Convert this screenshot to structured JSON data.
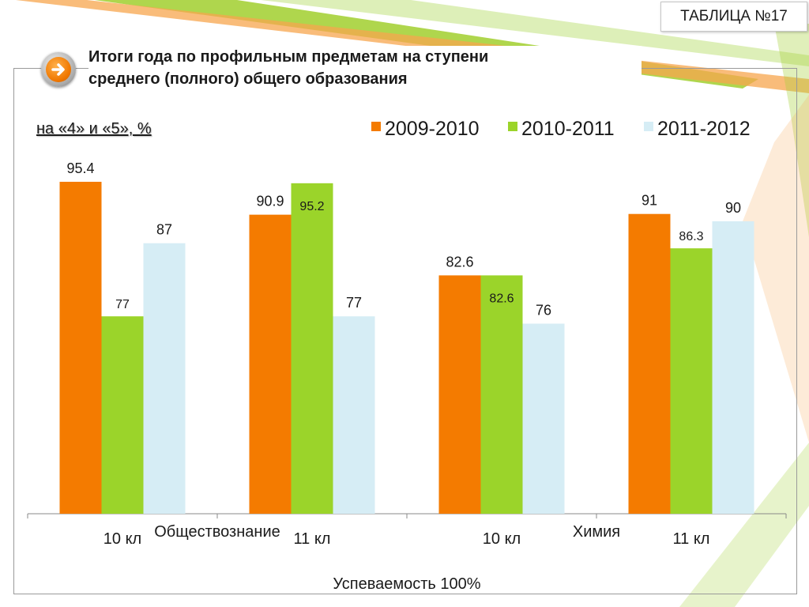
{
  "badge": "ТАБЛИЦА №17",
  "title_line1": "Итоги года по профильным  предметам на ступени",
  "title_line2": "среднего (полного) общего образования",
  "subtitle": "на «4» и «5», %",
  "colors": {
    "series1": "#f47b00",
    "series2": "#9bd42a",
    "series3": "#d6edf5",
    "deco_green": "#9ccc2e",
    "deco_orange": "#f3913a",
    "nav_orange": "#f07800"
  },
  "icons": {
    "nav": "arrow-right-icon"
  },
  "chart_data": {
    "type": "bar",
    "categories": [
      "10 кл",
      "11 кл",
      "10 кл",
      "11 кл"
    ],
    "groups": [
      {
        "label": "Обществознание",
        "span": [
          0,
          1
        ]
      },
      {
        "label": "Химия",
        "span": [
          2,
          3
        ]
      }
    ],
    "series": [
      {
        "name": "2009-2010",
        "values": [
          95.4,
          90.9,
          82.6,
          91
        ]
      },
      {
        "name": "2010-2011",
        "values": [
          77,
          95.2,
          82.6,
          86.3
        ]
      },
      {
        "name": "2011-2012",
        "values": [
          87,
          77,
          76,
          90
        ]
      }
    ],
    "xlabel": "Успеваемость 100%",
    "ylabel": "",
    "ylim": [
      0,
      100
    ],
    "grid": false,
    "legend": "top-right"
  }
}
